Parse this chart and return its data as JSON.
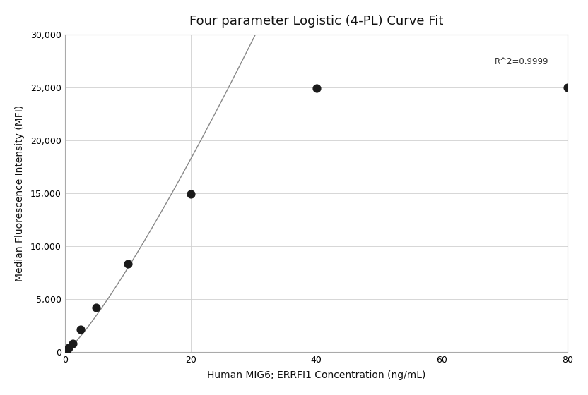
{
  "title": "Four parameter Logistic (4-PL) Curve Fit",
  "xlabel": "Human MIG6; ERRFI1 Concentration (ng/mL)",
  "ylabel": "Median Fluorescence Intensity (MFI)",
  "x_data": [
    0.156,
    0.313,
    0.625,
    1.25,
    2.5,
    5.0,
    10.0,
    20.0,
    40.0,
    80.0
  ],
  "y_data": [
    100,
    200,
    400,
    800,
    2100,
    4200,
    8300,
    14900,
    24900,
    25000
  ],
  "xlim": [
    0,
    80
  ],
  "ylim": [
    0,
    30000
  ],
  "xticks": [
    0,
    20,
    40,
    60,
    80
  ],
  "yticks": [
    0,
    5000,
    10000,
    15000,
    20000,
    25000,
    30000
  ],
  "r2_text": "R^2=0.9999",
  "r2_x": 77,
  "r2_y": 27000,
  "line_color": "#888888",
  "dot_color": "#1a1a1a",
  "dot_size": 60,
  "background_color": "#ffffff",
  "grid_color": "#d0d0d0",
  "title_fontsize": 13,
  "label_fontsize": 10,
  "tick_fontsize": 9,
  "annotation_fontsize": 8.5
}
